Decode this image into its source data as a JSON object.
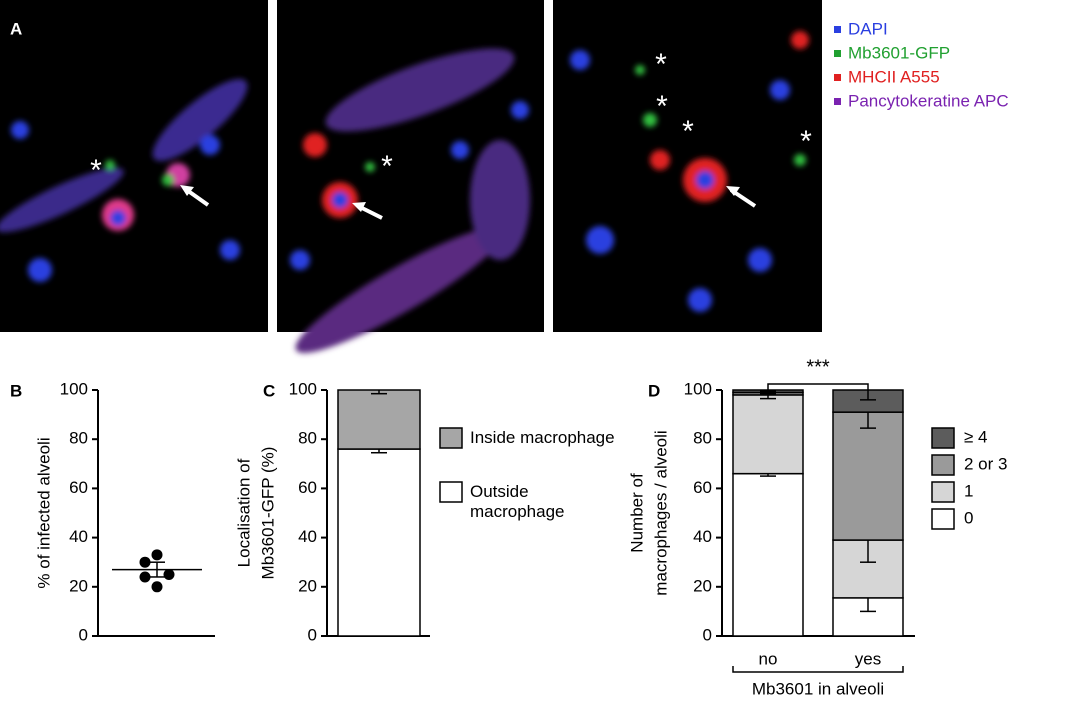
{
  "panel_a": {
    "label": "A",
    "asterisk": "*",
    "legend": [
      {
        "name": "DAPI",
        "color": "#2a3fe0"
      },
      {
        "name": "Mb3601-GFP",
        "color": "#20a030"
      },
      {
        "name": "MHCII A555",
        "color": "#e02020"
      },
      {
        "name": "Pancytokeratine APC",
        "color": "#7a22b0"
      }
    ]
  },
  "chart_data": [
    {
      "type": "scatter",
      "panel": "B",
      "ylabel": "% of infected alveoli",
      "values": [
        33,
        30,
        25,
        24,
        20
      ],
      "mean": 27,
      "sem": 3,
      "color": "#000000",
      "ylim": [
        0,
        100
      ],
      "yticks": [
        0,
        20,
        40,
        60,
        80,
        100
      ]
    },
    {
      "type": "stacked_bar",
      "panel": "C",
      "ylabel": [
        "Localisation of",
        "Mb3601-GFP (%)"
      ],
      "categories": [
        null
      ],
      "series": [
        {
          "name": "Outside macrophage",
          "color": "#ffffff",
          "values": [
            76
          ],
          "errors": [
            1.5
          ]
        },
        {
          "name": "Inside macrophage",
          "color": "#a6a6a6",
          "values": [
            24
          ],
          "errors": [
            1.5
          ]
        }
      ],
      "ylim": [
        0,
        100
      ],
      "yticks": [
        0,
        20,
        40,
        60,
        80,
        100
      ]
    },
    {
      "type": "stacked_bar",
      "panel": "D",
      "ylabel": [
        "Number of",
        "macrophages / alveoli"
      ],
      "xlabel": "Mb3601 in alveoli",
      "categories": [
        "no",
        "yes"
      ],
      "significance": "***",
      "series": [
        {
          "name": "0",
          "color": "#ffffff",
          "values": [
            66,
            15.5
          ],
          "errors": [
            1,
            5.5
          ]
        },
        {
          "name": "1",
          "color": "#d6d6d6",
          "values": [
            32,
            23.5
          ],
          "errors": [
            1.5,
            9
          ]
        },
        {
          "name": "2 or 3",
          "color": "#9a9a9a",
          "values": [
            1,
            52
          ],
          "errors": [
            0.5,
            6.5
          ]
        },
        {
          "name": "≥ 4",
          "color": "#5c5c5c",
          "values": [
            1,
            9
          ],
          "errors": [
            0.5,
            4
          ]
        }
      ],
      "ylim": [
        0,
        100
      ],
      "yticks": [
        0,
        20,
        40,
        60,
        80,
        100
      ]
    }
  ]
}
